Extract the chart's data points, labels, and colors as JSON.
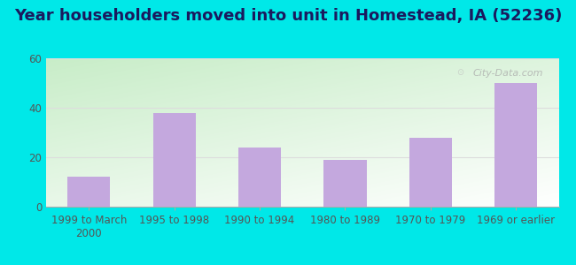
{
  "title": "Year householders moved into unit in Homestead, IA (52236)",
  "categories": [
    "1999 to March\n2000",
    "1995 to 1998",
    "1990 to 1994",
    "1980 to 1989",
    "1970 to 1979",
    "1969 or earlier"
  ],
  "values": [
    12,
    38,
    24,
    19,
    28,
    50
  ],
  "bar_color": "#c4a8de",
  "ylim": [
    0,
    60
  ],
  "yticks": [
    0,
    20,
    40,
    60
  ],
  "background_outer": "#00e8e8",
  "grid_color": "#dddddd",
  "title_fontsize": 13,
  "tick_fontsize": 8.5,
  "watermark": "City-Data.com",
  "grad_bottom_left": "#c8edc8",
  "grad_top_right": "#f5fff5"
}
